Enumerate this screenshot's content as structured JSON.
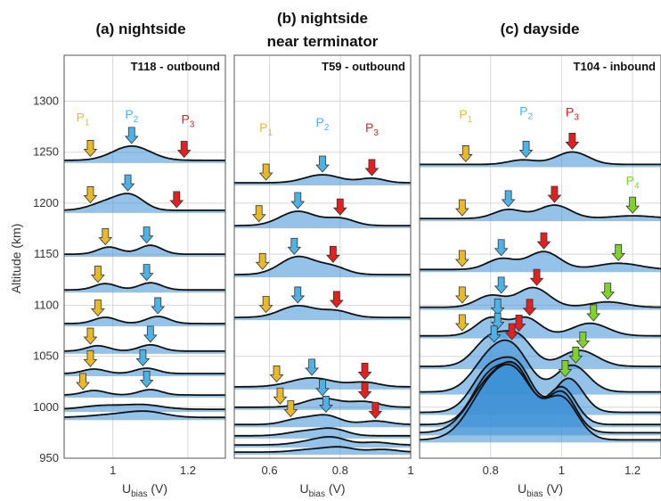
{
  "colors": {
    "fill": "#3d8fd6",
    "curve": "#111111",
    "p1": "#e8b928",
    "p2": "#4db3e6",
    "p3": "#e32020",
    "p4": "#7fd22a"
  },
  "ylabel": "Altitude (km)",
  "xlabel_main": "U",
  "xlabel_sub": "bias",
  "xlabel_unit": " (V)",
  "y_ticks": [
    "1300",
    "1250",
    "1200",
    "1150",
    "1100",
    "1050",
    "1000",
    "950"
  ],
  "chart_data": [
    {
      "type": "line",
      "title": "(a) nightside",
      "subtitle": "T118 - outbound",
      "xlim": [
        0.87,
        1.3
      ],
      "ylim": [
        950,
        1345
      ],
      "x_ticks": [
        "1",
        "1.2"
      ],
      "x_tick_values": [
        1.0,
        1.2
      ],
      "peak_labels": [
        {
          "label": "P",
          "sub": "1",
          "x": 0.92,
          "alt": 1280,
          "color": "p1"
        },
        {
          "label": "P",
          "sub": "2",
          "x": 1.05,
          "alt": 1283,
          "color": "p2"
        },
        {
          "label": "P",
          "sub": "3",
          "x": 1.2,
          "alt": 1278,
          "color": "p3"
        }
      ],
      "profiles": [
        {
          "alt": 1242,
          "peaks": [
            [
              1.05,
              16,
              0.05
            ]
          ],
          "arrows": [
            [
              0.94,
              "p1"
            ],
            [
              1.05,
              "p2"
            ],
            [
              1.19,
              "p3"
            ]
          ]
        },
        {
          "alt": 1193,
          "peaks": [
            [
              0.99,
              10,
              0.045
            ],
            [
              1.05,
              14,
              0.035
            ]
          ],
          "arrows": [
            [
              0.94,
              "p1"
            ],
            [
              1.04,
              "p2"
            ],
            [
              1.17,
              "p3"
            ]
          ]
        },
        {
          "alt": 1150,
          "peaks": [
            [
              0.99,
              8,
              0.03
            ],
            [
              1.1,
              10,
              0.03
            ]
          ],
          "arrows": [
            [
              0.98,
              "p1"
            ],
            [
              1.09,
              "p2"
            ]
          ]
        },
        {
          "alt": 1115,
          "peaks": [
            [
              0.98,
              7,
              0.03
            ],
            [
              1.1,
              8,
              0.03
            ]
          ],
          "arrows": [
            [
              0.96,
              "p1"
            ],
            [
              1.09,
              "p2"
            ]
          ]
        },
        {
          "alt": 1082,
          "peaks": [
            [
              0.98,
              7,
              0.03
            ],
            [
              1.12,
              8,
              0.03
            ]
          ],
          "arrows": [
            [
              0.96,
              "p1"
            ],
            [
              1.12,
              "p2"
            ]
          ]
        },
        {
          "alt": 1055,
          "peaks": [
            [
              0.96,
              6,
              0.03
            ],
            [
              1.1,
              7,
              0.03
            ]
          ],
          "arrows": [
            [
              0.94,
              "p1"
            ],
            [
              1.1,
              "p2"
            ]
          ]
        },
        {
          "alt": 1033,
          "peaks": [
            [
              0.95,
              5,
              0.03
            ],
            [
              1.09,
              6,
              0.03
            ]
          ],
          "arrows": [
            [
              0.94,
              "p1"
            ],
            [
              1.08,
              "p2"
            ]
          ]
        },
        {
          "alt": 1012,
          "peaks": [
            [
              0.95,
              5,
              0.03
            ],
            [
              1.1,
              6,
              0.03
            ]
          ],
          "arrows": [
            [
              0.92,
              "p1"
            ],
            [
              1.09,
              "p2"
            ]
          ]
        },
        {
          "alt": 998,
          "peaks": [
            [
              0.97,
              4,
              0.05
            ],
            [
              1.08,
              5,
              0.05
            ]
          ],
          "arrows": []
        },
        {
          "alt": 990,
          "peaks": [
            [
              1.0,
              3,
              0.06
            ],
            [
              1.09,
              6,
              0.05
            ]
          ],
          "arrows": []
        }
      ]
    },
    {
      "type": "line",
      "title": "(b) nightside",
      "title2": "near terminator",
      "subtitle": "T59 - outbound",
      "xlim": [
        0.5,
        1.0
      ],
      "ylim": [
        950,
        1345
      ],
      "x_ticks": [
        "0.6",
        "0.8",
        "1"
      ],
      "x_tick_values": [
        0.6,
        0.8,
        1.0
      ],
      "peak_labels": [
        {
          "label": "P",
          "sub": "1",
          "x": 0.59,
          "alt": 1270,
          "color": "p1"
        },
        {
          "label": "P",
          "sub": "2",
          "x": 0.75,
          "alt": 1275,
          "color": "p2"
        },
        {
          "label": "P",
          "sub": "3",
          "x": 0.89,
          "alt": 1270,
          "color": "p3"
        }
      ],
      "profiles": [
        {
          "alt": 1220,
          "peaks": [
            [
              0.75,
              9,
              0.05
            ],
            [
              0.89,
              5,
              0.035
            ]
          ],
          "arrows": [
            [
              0.59,
              "p1"
            ],
            [
              0.75,
              "p2"
            ],
            [
              0.89,
              "p3"
            ]
          ]
        },
        {
          "alt": 1178,
          "peaks": [
            [
              0.68,
              16,
              0.05
            ],
            [
              0.8,
              8,
              0.04
            ]
          ],
          "arrows": [
            [
              0.57,
              "p1"
            ],
            [
              0.68,
              "p2"
            ],
            [
              0.8,
              "p3"
            ]
          ]
        },
        {
          "alt": 1130,
          "peaks": [
            [
              0.68,
              20,
              0.05
            ],
            [
              0.78,
              8,
              0.04
            ]
          ],
          "arrows": [
            [
              0.58,
              "p1"
            ],
            [
              0.67,
              "p2"
            ],
            [
              0.78,
              "p3"
            ]
          ]
        },
        {
          "alt": 1088,
          "peaks": [
            [
              0.68,
              13,
              0.05
            ],
            [
              0.79,
              7,
              0.04
            ]
          ],
          "arrows": [
            [
              0.59,
              "p1"
            ],
            [
              0.68,
              "p2"
            ],
            [
              0.79,
              "p3"
            ]
          ]
        },
        {
          "alt": 1020,
          "peaks": [
            [
              0.72,
              10,
              0.06
            ],
            [
              0.87,
              5,
              0.04
            ]
          ],
          "arrows": [
            [
              0.62,
              "p1"
            ],
            [
              0.72,
              "p2"
            ],
            [
              0.87,
              "p3"
            ]
          ]
        },
        {
          "alt": 1000,
          "peaks": [
            [
              0.75,
              10,
              0.05
            ],
            [
              0.87,
              6,
              0.04
            ]
          ],
          "arrows": [
            [
              0.63,
              "p1"
            ],
            [
              0.75,
              "p2"
            ],
            [
              0.87,
              "p3"
            ]
          ]
        },
        {
          "alt": 983,
          "peaks": [
            [
              0.68,
              6,
              0.04
            ],
            [
              0.76,
              10,
              0.04
            ],
            [
              0.9,
              4,
              0.04
            ]
          ],
          "arrows": [
            [
              0.66,
              "p1"
            ],
            [
              0.76,
              "p2"
            ],
            [
              0.9,
              "p3"
            ]
          ]
        },
        {
          "alt": 972,
          "peaks": [
            [
              0.7,
              5,
              0.05
            ],
            [
              0.78,
              7,
              0.04
            ]
          ],
          "arrows": []
        },
        {
          "alt": 963,
          "peaks": [
            [
              0.72,
              4,
              0.05
            ],
            [
              0.78,
              7,
              0.04
            ],
            [
              0.9,
              3,
              0.04
            ]
          ],
          "arrows": []
        },
        {
          "alt": 956,
          "peaks": [
            [
              0.72,
              3,
              0.05
            ],
            [
              0.8,
              5,
              0.04
            ],
            [
              0.92,
              3,
              0.04
            ]
          ],
          "arrows": []
        }
      ]
    },
    {
      "type": "line",
      "title": "(c) dayside",
      "subtitle": "T104 - inbound",
      "xlim": [
        0.6,
        1.28
      ],
      "ylim": [
        950,
        1345
      ],
      "x_ticks": [
        "0.8",
        "1",
        "1.2"
      ],
      "x_tick_values": [
        0.8,
        1.0,
        1.2
      ],
      "peak_labels": [
        {
          "label": "P",
          "sub": "1",
          "x": 0.73,
          "alt": 1283,
          "color": "p1"
        },
        {
          "label": "P",
          "sub": "2",
          "x": 0.9,
          "alt": 1286,
          "color": "p2"
        },
        {
          "label": "P",
          "sub": "3",
          "x": 1.03,
          "alt": 1285,
          "color": "p3"
        },
        {
          "label": "P",
          "sub": "4",
          "x": 1.2,
          "alt": 1218,
          "color": "p4"
        }
      ],
      "profiles": [
        {
          "alt": 1238,
          "peaks": [
            [
              0.89,
              5,
              0.04
            ],
            [
              1.03,
              14,
              0.045
            ]
          ],
          "arrows": [
            [
              0.73,
              "p1"
            ],
            [
              0.9,
              "p2"
            ],
            [
              1.03,
              "p3"
            ]
          ]
        },
        {
          "alt": 1185,
          "peaks": [
            [
              0.85,
              10,
              0.04
            ],
            [
              0.98,
              15,
              0.045
            ],
            [
              1.2,
              3,
              0.06
            ]
          ],
          "arrows": [
            [
              0.72,
              "p1"
            ],
            [
              0.85,
              "p2"
            ],
            [
              0.98,
              "p3"
            ],
            [
              1.2,
              "p4"
            ]
          ]
        },
        {
          "alt": 1135,
          "peaks": [
            [
              0.83,
              12,
              0.04
            ],
            [
              0.95,
              20,
              0.045
            ],
            [
              1.16,
              7,
              0.06
            ]
          ],
          "arrows": [
            [
              0.72,
              "p1"
            ],
            [
              0.83,
              "p2"
            ],
            [
              0.95,
              "p3"
            ],
            [
              1.16,
              "p4"
            ]
          ]
        },
        {
          "alt": 1098,
          "peaks": [
            [
              0.8,
              13,
              0.04
            ],
            [
              0.92,
              22,
              0.045
            ],
            [
              1.13,
              6,
              0.05
            ]
          ],
          "arrows": [
            [
              0.72,
              "p1"
            ],
            [
              0.83,
              "p2"
            ],
            [
              0.93,
              "p3"
            ],
            [
              1.13,
              "p4"
            ]
          ]
        },
        {
          "alt": 1070,
          "peaks": [
            [
              0.8,
              20,
              0.04
            ],
            [
              0.9,
              20,
              0.04
            ],
            [
              1.08,
              14,
              0.05
            ]
          ],
          "arrows": [
            [
              0.72,
              "p1"
            ],
            [
              0.82,
              "p2"
            ],
            [
              0.91,
              "p3"
            ],
            [
              1.09,
              "p4"
            ]
          ]
        },
        {
          "alt": 1040,
          "peaks": [
            [
              0.8,
              32,
              0.045
            ],
            [
              0.88,
              30,
              0.04
            ],
            [
              1.05,
              18,
              0.05
            ]
          ],
          "arrows": [
            [
              0.82,
              "p2"
            ],
            [
              0.88,
              "p3"
            ],
            [
              1.06,
              "p4"
            ]
          ]
        },
        {
          "alt": 1015,
          "peaks": [
            [
              0.8,
              38,
              0.05
            ],
            [
              0.87,
              38,
              0.045
            ],
            [
              1.03,
              30,
              0.045
            ]
          ],
          "arrows": [
            [
              0.81,
              "p2"
            ],
            [
              0.86,
              "p3"
            ],
            [
              1.04,
              "p4"
            ]
          ]
        },
        {
          "alt": 995,
          "peaks": [
            [
              0.8,
              50,
              0.05
            ],
            [
              0.88,
              42,
              0.04
            ],
            [
              1.02,
              38,
              0.04
            ]
          ],
          "arrows": [
            [
              1.01,
              "p4"
            ]
          ]
        },
        {
          "alt": 983,
          "peaks": [
            [
              0.8,
              55,
              0.05
            ],
            [
              0.88,
              48,
              0.04
            ],
            [
              1.0,
              42,
              0.04
            ]
          ],
          "arrows": []
        },
        {
          "alt": 975,
          "peaks": [
            [
              0.8,
              56,
              0.06
            ],
            [
              0.88,
              50,
              0.045
            ],
            [
              1.0,
              45,
              0.04
            ]
          ],
          "arrows": []
        },
        {
          "alt": 968,
          "peaks": [
            [
              0.8,
              58,
              0.06
            ],
            [
              0.88,
              52,
              0.05
            ],
            [
              1.0,
              46,
              0.045
            ]
          ],
          "arrows": []
        }
      ]
    }
  ]
}
